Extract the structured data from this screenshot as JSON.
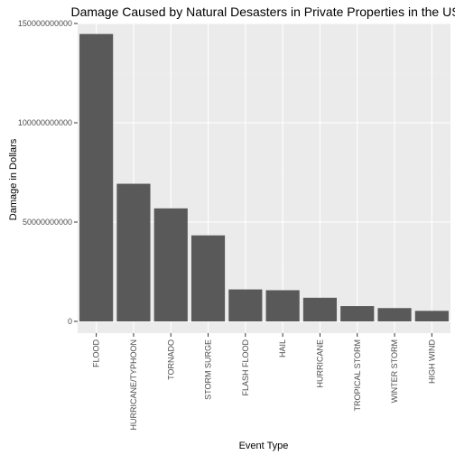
{
  "chart_data": {
    "type": "bar",
    "title": "Damage Caused by Natural Desasters in Private Properties in the US",
    "xlabel": "Event Type",
    "ylabel": "Damage in Dollars",
    "categories": [
      "FLOOD",
      "HURRICANE/TYPHOON",
      "TORNADO",
      "STORM SURGE",
      "FLASH FLOOD",
      "HAIL",
      "HURRICANE",
      "TROPICAL STORM",
      "WINTER STORM",
      "HIGH WIND"
    ],
    "values": [
      144700000000,
      69300000000,
      56900000000,
      43300000000,
      16100000000,
      15700000000,
      11900000000,
      7700000000,
      6700000000,
      5300000000
    ],
    "ylim": [
      0,
      152000000000
    ],
    "yticks": [
      0,
      50000000000,
      100000000000,
      150000000000
    ],
    "ytick_labels": [
      "0",
      "50000000000",
      "100000000000",
      "150000000000"
    ],
    "grid": true,
    "colors": {
      "bar": "#595959",
      "panel": "#ebebeb",
      "grid_major": "#ffffff",
      "grid_minor": "#f2f2f2"
    }
  }
}
